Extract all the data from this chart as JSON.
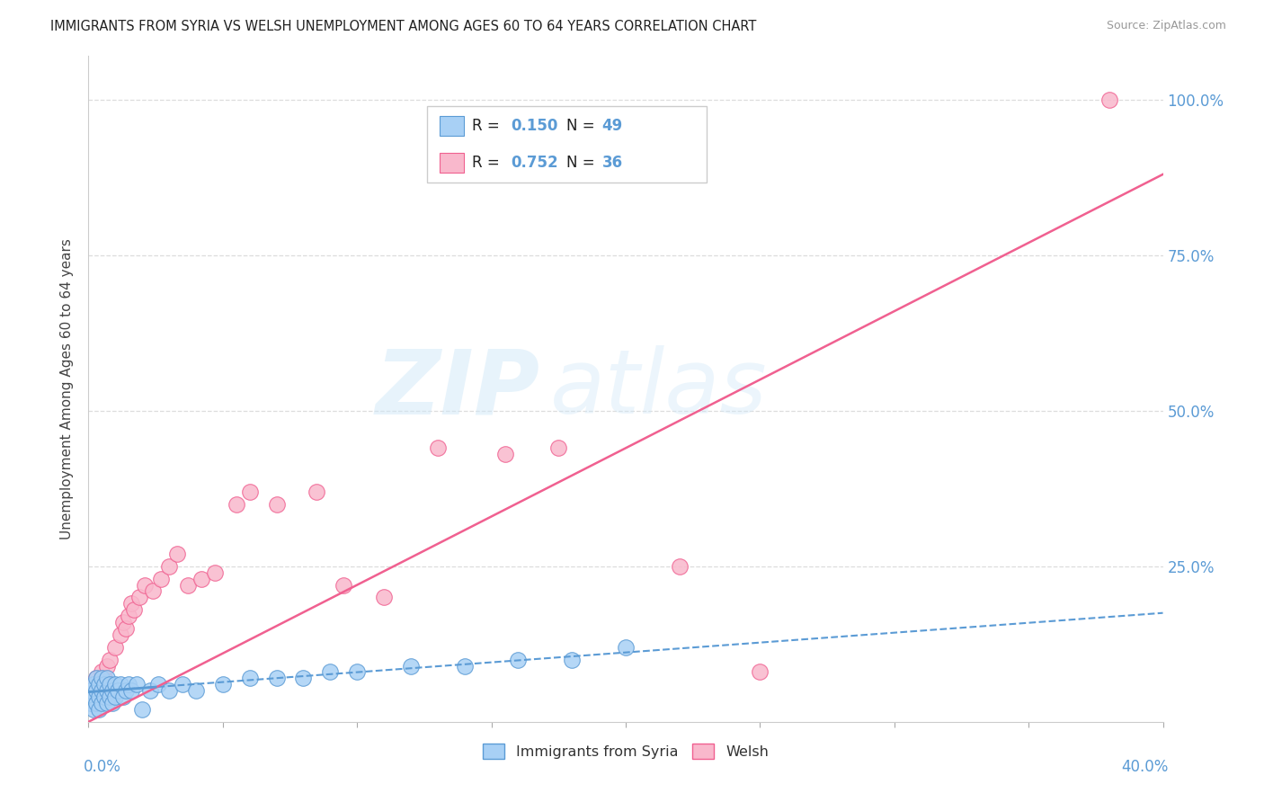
{
  "title": "IMMIGRANTS FROM SYRIA VS WELSH UNEMPLOYMENT AMONG AGES 60 TO 64 YEARS CORRELATION CHART",
  "source": "Source: ZipAtlas.com",
  "ylabel": "Unemployment Among Ages 60 to 64 years",
  "xmin": 0.0,
  "xmax": 0.4,
  "ymin": 0.0,
  "ymax": 1.07,
  "color_syria": "#a8d0f5",
  "color_syria_edge": "#5b9bd5",
  "color_welsh": "#f9b8cc",
  "color_welsh_edge": "#f06090",
  "color_line_blue": "#5b9bd5",
  "color_line_pink": "#f06090",
  "color_blue_text": "#5b9bd5",
  "color_dark_text": "#222222",
  "color_grid": "#dddddd",
  "background_color": "#ffffff",
  "syria_x": [
    0.001,
    0.001,
    0.002,
    0.002,
    0.002,
    0.003,
    0.003,
    0.003,
    0.004,
    0.004,
    0.004,
    0.005,
    0.005,
    0.005,
    0.006,
    0.006,
    0.007,
    0.007,
    0.007,
    0.008,
    0.008,
    0.009,
    0.009,
    0.01,
    0.01,
    0.011,
    0.012,
    0.013,
    0.014,
    0.015,
    0.016,
    0.018,
    0.02,
    0.023,
    0.026,
    0.03,
    0.035,
    0.04,
    0.05,
    0.06,
    0.07,
    0.08,
    0.09,
    0.1,
    0.12,
    0.14,
    0.16,
    0.18,
    0.2
  ],
  "syria_y": [
    0.03,
    0.05,
    0.04,
    0.06,
    0.02,
    0.05,
    0.07,
    0.03,
    0.04,
    0.06,
    0.02,
    0.05,
    0.03,
    0.07,
    0.04,
    0.06,
    0.03,
    0.05,
    0.07,
    0.04,
    0.06,
    0.05,
    0.03,
    0.06,
    0.04,
    0.05,
    0.06,
    0.04,
    0.05,
    0.06,
    0.05,
    0.06,
    0.02,
    0.05,
    0.06,
    0.05,
    0.06,
    0.05,
    0.06,
    0.07,
    0.07,
    0.07,
    0.08,
    0.08,
    0.09,
    0.09,
    0.1,
    0.1,
    0.12
  ],
  "welsh_x": [
    0.001,
    0.002,
    0.003,
    0.004,
    0.005,
    0.006,
    0.007,
    0.008,
    0.01,
    0.012,
    0.013,
    0.014,
    0.015,
    0.016,
    0.017,
    0.019,
    0.021,
    0.024,
    0.027,
    0.03,
    0.033,
    0.037,
    0.042,
    0.047,
    0.055,
    0.06,
    0.07,
    0.085,
    0.095,
    0.11,
    0.13,
    0.155,
    0.175,
    0.22,
    0.25,
    0.38
  ],
  "welsh_y": [
    0.05,
    0.06,
    0.07,
    0.06,
    0.08,
    0.07,
    0.09,
    0.1,
    0.12,
    0.14,
    0.16,
    0.15,
    0.17,
    0.19,
    0.18,
    0.2,
    0.22,
    0.21,
    0.23,
    0.25,
    0.27,
    0.22,
    0.23,
    0.24,
    0.35,
    0.37,
    0.35,
    0.37,
    0.22,
    0.2,
    0.44,
    0.43,
    0.44,
    0.25,
    0.08,
    1.0
  ],
  "syria_line_x": [
    0.0,
    0.4
  ],
  "syria_line_y": [
    0.048,
    0.175
  ],
  "welsh_line_x": [
    0.0,
    0.4
  ],
  "welsh_line_y": [
    0.0,
    0.88
  ],
  "watermark_zip": "ZIP",
  "watermark_atlas": "atlas",
  "right_ytick_labels": [
    "",
    "25.0%",
    "50.0%",
    "75.0%",
    "100.0%"
  ],
  "right_ytick_vals": [
    0.0,
    0.25,
    0.5,
    0.75,
    1.0
  ],
  "figsize": [
    14.06,
    8.92
  ],
  "dpi": 100
}
